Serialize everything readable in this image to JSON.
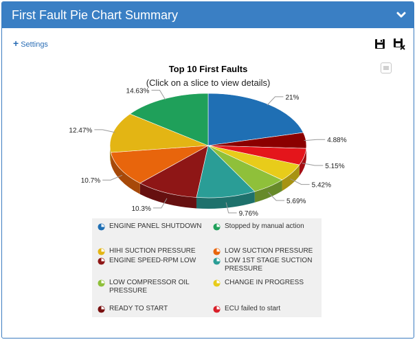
{
  "panel": {
    "title": "First Fault Pie Chart Summary"
  },
  "toolbar": {
    "settings_label": "Settings"
  },
  "icons": {
    "collapse": "chevron-down-icon",
    "save": "save-icon",
    "clear_save": "save-cancel-icon",
    "menu": "chart-menu-icon"
  },
  "chart_data": {
    "type": "pie",
    "title": "Top 10 First Faults",
    "subtitle": "(Click on a slice to view details)",
    "slices": [
      {
        "label": "ENGINE PANEL SHUTDOWN",
        "value": 21,
        "value_label": "21%",
        "color": "#1f6fb4"
      },
      {
        "label": "ECU failed to start",
        "value": 4.88,
        "value_label": "4.88%",
        "color": "#8b0000"
      },
      {
        "label": "LOW COMPRESSOR OIL PRESSURE",
        "value": 5.15,
        "value_label": "5.15%",
        "color": "#e4151b"
      },
      {
        "label": "CHANGE IN PROGRESS",
        "value": 5.42,
        "value_label": "5.42%",
        "color": "#e8cc1a"
      },
      {
        "label": "READY TO START",
        "value": 5.69,
        "value_label": "5.69%",
        "color": "#8fc03a"
      },
      {
        "label": "LOW 1ST STAGE SUCTION PRESSURE",
        "value": 9.76,
        "value_label": "9.76%",
        "color": "#2a9d96"
      },
      {
        "label": "ENGINE SPEED-RPM LOW",
        "value": 10.3,
        "value_label": "10.3%",
        "color": "#8e1616"
      },
      {
        "label": "LOW SUCTION PRESSURE",
        "value": 10.7,
        "value_label": "10.7%",
        "color": "#e8650c"
      },
      {
        "label": "HIHI SUCTION PRESSURE",
        "value": 12.47,
        "value_label": "12.47%",
        "color": "#e3b514"
      },
      {
        "label": "Stopped by manual action",
        "value": 14.63,
        "value_label": "14.63%",
        "color": "#1fa05a"
      }
    ],
    "legend": [
      {
        "label": "ENGINE PANEL SHUTDOWN",
        "color": "#1f6fb4"
      },
      {
        "label": "Stopped by manual action",
        "color": "#1fa05a"
      },
      {
        "label": "HIHI SUCTION PRESSURE",
        "color": "#e3b514"
      },
      {
        "label": "LOW SUCTION PRESSURE",
        "color": "#e8650c"
      },
      {
        "label": "ENGINE SPEED-RPM LOW",
        "color": "#8e1616"
      },
      {
        "label": "LOW 1ST STAGE SUCTION PRESSURE",
        "color": "#2a9d96"
      },
      {
        "label": "LOW COMPRESSOR OIL PRESSURE",
        "color": "#8fc03a"
      },
      {
        "label": "CHANGE IN PROGRESS",
        "color": "#e8cc1a"
      },
      {
        "label": "READY TO START",
        "color": "#7a1010"
      },
      {
        "label": "ECU failed to start",
        "color": "#d9202a"
      }
    ],
    "legend_position": "bottom"
  }
}
